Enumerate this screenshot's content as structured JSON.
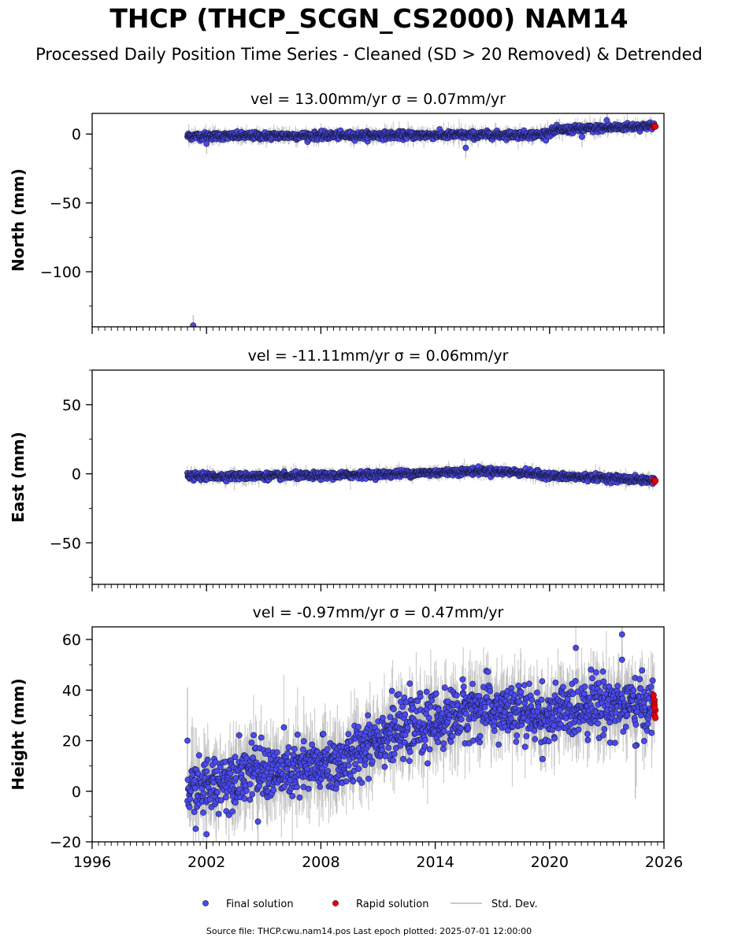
{
  "page": {
    "title": "THCP (THCP_SCGN_CS2000) NAM14",
    "subtitle": "Processed Daily Position Time Series - Cleaned (SD > 20 Removed) & Detrended",
    "footer": "Source file: THCP.cwu.nam14.pos  Last epoch plotted: 2025-07-01 12:00:00"
  },
  "colors": {
    "final": "#4a4af0",
    "rapid": "#e8000b",
    "stddev": "#b8b8b8",
    "edge": "#1a1a40"
  },
  "legend": {
    "final": "Final solution",
    "rapid": "Rapid solution",
    "stddev": "Std. Dev."
  },
  "chart_data": [
    {
      "type": "scatter",
      "title": "vel = 13.00mm/yr   σ = 0.07mm/yr",
      "ylabel": "North (mm)",
      "xlabel": "",
      "xlim": [
        1996,
        2026
      ],
      "ylim": [
        -140,
        15
      ],
      "yticks": [
        0,
        -50,
        -100
      ],
      "show_xticklabels": false,
      "data_start": 2001.0,
      "data_end": 2025.5,
      "trend": [
        [
          2001.0,
          -1.5
        ],
        [
          2019.5,
          -0.5
        ],
        [
          2020.5,
          3.0
        ],
        [
          2025.5,
          6.0
        ]
      ],
      "scatter_sd": 1.3,
      "errbar_sd": 2.5,
      "outliers": [
        [
          2001.3,
          -139
        ],
        [
          2015.6,
          -10
        ],
        [
          2021.7,
          -2
        ],
        [
          2023.0,
          10
        ],
        [
          2002.0,
          -7
        ]
      ],
      "rapid": [
        [
          2025.45,
          5.0
        ],
        [
          2025.5,
          6.0
        ],
        [
          2025.55,
          5.5
        ]
      ]
    },
    {
      "type": "scatter",
      "title": "vel = -11.11mm/yr   σ = 0.06mm/yr",
      "ylabel": "East (mm)",
      "xlabel": "",
      "xlim": [
        1996,
        2026
      ],
      "ylim": [
        -80,
        75
      ],
      "yticks": [
        50,
        0,
        -50
      ],
      "show_xticklabels": false,
      "data_start": 2001.0,
      "data_end": 2025.5,
      "trend": [
        [
          2001.0,
          -2.0
        ],
        [
          2008.0,
          -1.5
        ],
        [
          2012.0,
          0.0
        ],
        [
          2016.5,
          2.0
        ],
        [
          2018.5,
          1.0
        ],
        [
          2020.5,
          -2.0
        ],
        [
          2023.0,
          -3.0
        ],
        [
          2025.5,
          -5.0
        ]
      ],
      "scatter_sd": 1.2,
      "errbar_sd": 2.2,
      "outliers": [],
      "rapid": [
        [
          2025.45,
          -4.5
        ],
        [
          2025.5,
          -6.0
        ],
        [
          2025.55,
          -5.0
        ]
      ]
    },
    {
      "type": "scatter",
      "title": "vel = -0.97mm/yr   σ = 0.47mm/yr",
      "ylabel": "Height (mm)",
      "xlabel": "",
      "xlim": [
        1996,
        2026
      ],
      "ylim": [
        -20,
        65
      ],
      "yticks": [
        60,
        40,
        20,
        0,
        -20
      ],
      "xticks": [
        1996,
        2002,
        2008,
        2014,
        2020,
        2026
      ],
      "show_xticklabels": true,
      "data_start": 2001.0,
      "data_end": 2025.5,
      "trend": [
        [
          2001.0,
          0.0
        ],
        [
          2002.0,
          2.0
        ],
        [
          2004.0,
          8.0
        ],
        [
          2006.0,
          7.0
        ],
        [
          2008.0,
          10.0
        ],
        [
          2009.5,
          12.0
        ],
        [
          2010.5,
          20.0
        ],
        [
          2012.0,
          24.0
        ],
        [
          2014.0,
          27.0
        ],
        [
          2016.0,
          33.0
        ],
        [
          2018.0,
          31.0
        ],
        [
          2020.0,
          29.0
        ],
        [
          2022.0,
          35.0
        ],
        [
          2024.0,
          34.0
        ],
        [
          2025.5,
          33.0
        ]
      ],
      "scatter_sd": 5.5,
      "errbar_sd": 7.0,
      "outliers": [
        [
          2001.0,
          20
        ],
        [
          2002.0,
          -17
        ],
        [
          2004.7,
          -12
        ],
        [
          2023.8,
          62
        ],
        [
          2023.8,
          52
        ],
        [
          2024.5,
          18
        ]
      ],
      "rapid": [
        [
          2025.45,
          38
        ],
        [
          2025.5,
          36
        ],
        [
          2025.5,
          34
        ],
        [
          2025.55,
          32
        ],
        [
          2025.5,
          30
        ],
        [
          2025.55,
          29
        ],
        [
          2025.5,
          33
        ]
      ]
    }
  ]
}
